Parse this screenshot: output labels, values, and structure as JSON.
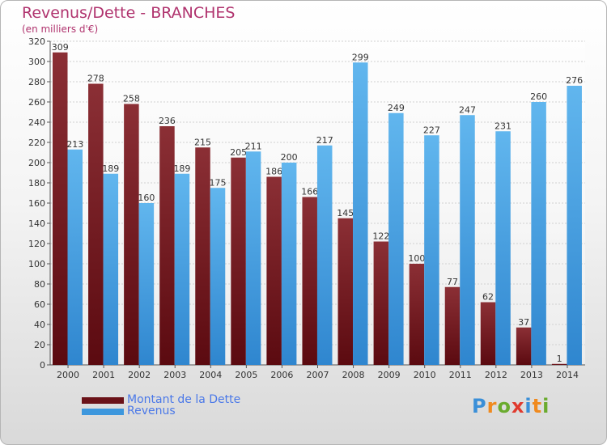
{
  "title": "Revenus/Dette - BRANCHES",
  "subtitle": "(en milliers d'€)",
  "colors": {
    "debt_top": "#8b2f35",
    "debt_bottom": "#5b0a10",
    "revenue_top": "#61b6ee",
    "revenue_bottom": "#2f86cf",
    "title": "#b0336e",
    "legend_text": "#4a78e8"
  },
  "legend": [
    {
      "label": "Montant de la Dette",
      "color": "#6a1218"
    },
    {
      "label": "Revenus",
      "color": "#3d97dd"
    }
  ],
  "logo": {
    "text": "Proxiti",
    "colors": [
      "#3a8fd8",
      "#f08a1e",
      "#6aab2e",
      "#e03a2e",
      "#3a8fd8",
      "#f08a1e",
      "#6aab2e"
    ]
  },
  "chart_data": {
    "type": "bar",
    "categories": [
      "2000",
      "2001",
      "2002",
      "2003",
      "2004",
      "2005",
      "2006",
      "2007",
      "2008",
      "2009",
      "2010",
      "2011",
      "2012",
      "2013",
      "2014"
    ],
    "series": [
      {
        "name": "Montant de la Dette",
        "values": [
          309,
          278,
          258,
          236,
          215,
          205,
          186,
          166,
          145,
          122,
          100,
          77,
          62,
          37,
          1
        ]
      },
      {
        "name": "Revenus",
        "values": [
          213,
          189,
          160,
          189,
          175,
          211,
          200,
          217,
          299,
          249,
          227,
          247,
          231,
          260,
          276
        ]
      }
    ],
    "ylim": [
      0,
      320
    ],
    "yticks": [
      0,
      20,
      40,
      60,
      80,
      100,
      120,
      140,
      160,
      180,
      200,
      220,
      240,
      260,
      280,
      300,
      320
    ],
    "grid": true,
    "legend_position": "bottom-left"
  }
}
